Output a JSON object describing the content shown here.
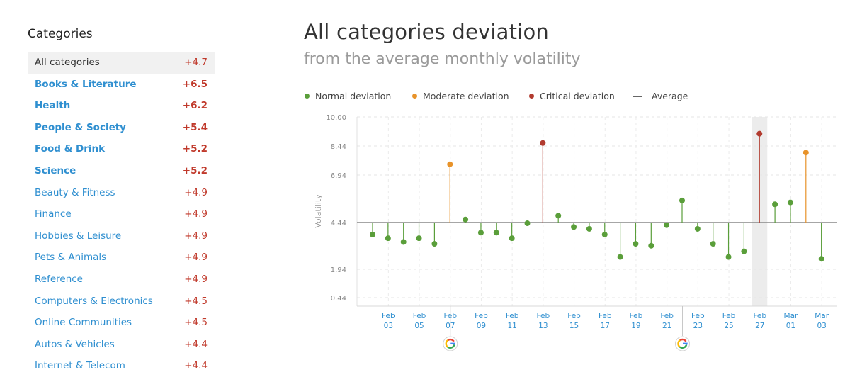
{
  "sidebar": {
    "title": "Categories",
    "items": [
      {
        "label": "All categories",
        "value": "+4.7",
        "selected": true,
        "bold": false
      },
      {
        "label": "Books & Literature",
        "value": "+6.5",
        "selected": false,
        "bold": true
      },
      {
        "label": "Health",
        "value": "+6.2",
        "selected": false,
        "bold": true
      },
      {
        "label": "People & Society",
        "value": "+5.4",
        "selected": false,
        "bold": true
      },
      {
        "label": "Food & Drink",
        "value": "+5.2",
        "selected": false,
        "bold": true
      },
      {
        "label": "Science",
        "value": "+5.2",
        "selected": false,
        "bold": true
      },
      {
        "label": "Beauty & Fitness",
        "value": "+4.9",
        "selected": false,
        "bold": false
      },
      {
        "label": "Finance",
        "value": "+4.9",
        "selected": false,
        "bold": false
      },
      {
        "label": "Hobbies & Leisure",
        "value": "+4.9",
        "selected": false,
        "bold": false
      },
      {
        "label": "Pets & Animals",
        "value": "+4.9",
        "selected": false,
        "bold": false
      },
      {
        "label": "Reference",
        "value": "+4.9",
        "selected": false,
        "bold": false
      },
      {
        "label": "Computers & Electronics",
        "value": "+4.5",
        "selected": false,
        "bold": false
      },
      {
        "label": "Online Communities",
        "value": "+4.5",
        "selected": false,
        "bold": false
      },
      {
        "label": "Autos & Vehicles",
        "value": "+4.4",
        "selected": false,
        "bold": false
      },
      {
        "label": "Internet & Telecom",
        "value": "+4.4",
        "selected": false,
        "bold": false
      }
    ]
  },
  "main": {
    "title": "All categories deviation",
    "subtitle": "from the average monthly volatility"
  },
  "legend": {
    "normal": "Normal deviation",
    "moderate": "Moderate deviation",
    "critical": "Critical deviation",
    "average": "Average"
  },
  "colors": {
    "normal": "#5a9e3a",
    "moderate": "#e8932a",
    "critical": "#b23b2f",
    "average": "#888888",
    "link": "#2f8fd0",
    "negative_value": "#c0392b"
  },
  "icons": {
    "google_marker": "google-logo-icon"
  },
  "chart_data": {
    "type": "scatter",
    "ylabel": "Volatility",
    "xlabel": "",
    "average": 4.44,
    "yticks": [
      "10.00",
      "8.44",
      "6.94",
      "4.44",
      "1.94",
      "0.44"
    ],
    "xtick_labels": [
      [
        "Feb",
        "03"
      ],
      [
        "Feb",
        "05"
      ],
      [
        "Feb",
        "07"
      ],
      [
        "Feb",
        "09"
      ],
      [
        "Feb",
        "11"
      ],
      [
        "Feb",
        "13"
      ],
      [
        "Feb",
        "15"
      ],
      [
        "Feb",
        "17"
      ],
      [
        "Feb",
        "19"
      ],
      [
        "Feb",
        "21"
      ],
      [
        "Feb",
        "23"
      ],
      [
        "Feb",
        "25"
      ],
      [
        "Feb",
        "27"
      ],
      [
        "Mar",
        "01"
      ],
      [
        "Mar",
        "03"
      ]
    ],
    "highlighted_date": "Feb 27",
    "google_update_dates": [
      "Feb 07",
      "Feb 22"
    ],
    "points": [
      {
        "date": "Feb 02",
        "value": 3.8,
        "level": "normal"
      },
      {
        "date": "Feb 03",
        "value": 3.6,
        "level": "normal"
      },
      {
        "date": "Feb 04",
        "value": 3.4,
        "level": "normal"
      },
      {
        "date": "Feb 05",
        "value": 3.6,
        "level": "normal"
      },
      {
        "date": "Feb 06",
        "value": 3.3,
        "level": "normal"
      },
      {
        "date": "Feb 07",
        "value": 7.5,
        "level": "moderate"
      },
      {
        "date": "Feb 08",
        "value": 4.6,
        "level": "normal"
      },
      {
        "date": "Feb 09",
        "value": 3.9,
        "level": "normal"
      },
      {
        "date": "Feb 10",
        "value": 3.9,
        "level": "normal"
      },
      {
        "date": "Feb 11",
        "value": 3.6,
        "level": "normal"
      },
      {
        "date": "Feb 12",
        "value": 4.4,
        "level": "normal"
      },
      {
        "date": "Feb 13",
        "value": 8.6,
        "level": "critical"
      },
      {
        "date": "Feb 14",
        "value": 4.8,
        "level": "normal"
      },
      {
        "date": "Feb 15",
        "value": 4.2,
        "level": "normal"
      },
      {
        "date": "Feb 16",
        "value": 4.1,
        "level": "normal"
      },
      {
        "date": "Feb 17",
        "value": 3.8,
        "level": "normal"
      },
      {
        "date": "Feb 18",
        "value": 2.6,
        "level": "normal"
      },
      {
        "date": "Feb 19",
        "value": 3.3,
        "level": "normal"
      },
      {
        "date": "Feb 20",
        "value": 3.2,
        "level": "normal"
      },
      {
        "date": "Feb 21",
        "value": 4.3,
        "level": "normal"
      },
      {
        "date": "Feb 22",
        "value": 5.6,
        "level": "normal"
      },
      {
        "date": "Feb 23",
        "value": 4.1,
        "level": "normal"
      },
      {
        "date": "Feb 24",
        "value": 3.3,
        "level": "normal"
      },
      {
        "date": "Feb 25",
        "value": 2.6,
        "level": "normal"
      },
      {
        "date": "Feb 26",
        "value": 2.9,
        "level": "normal"
      },
      {
        "date": "Feb 27",
        "value": 9.1,
        "level": "critical"
      },
      {
        "date": "Feb 28",
        "value": 5.4,
        "level": "normal"
      },
      {
        "date": "Mar 01",
        "value": 5.5,
        "level": "normal"
      },
      {
        "date": "Mar 02",
        "value": 8.1,
        "level": "moderate"
      },
      {
        "date": "Mar 03",
        "value": 2.5,
        "level": "normal"
      }
    ]
  }
}
